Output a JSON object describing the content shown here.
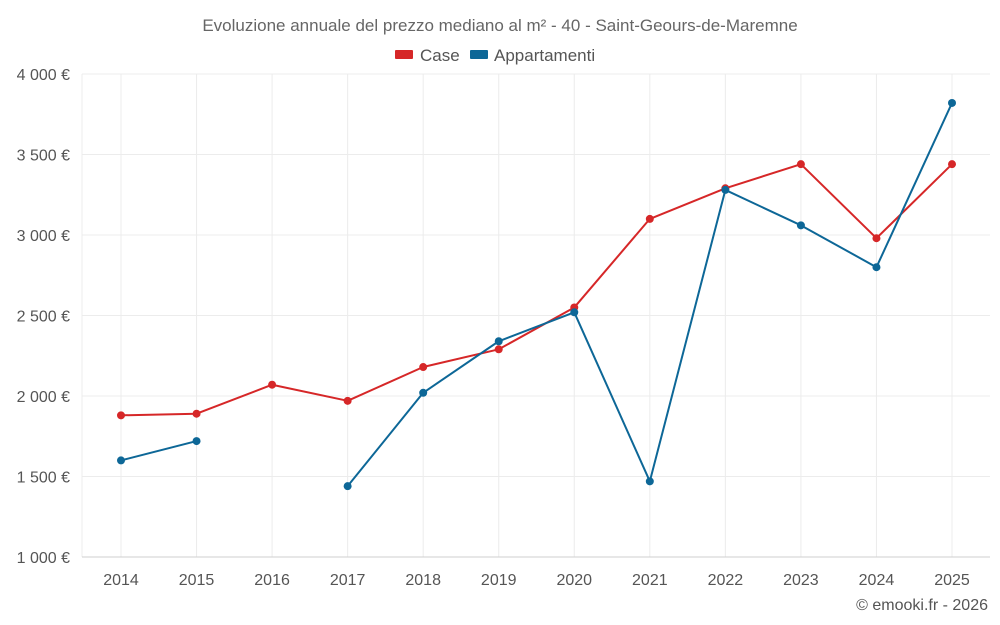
{
  "chart_data": {
    "type": "line",
    "title": "Evoluzione annuale del prezzo mediano al m² - 40 - Saint-Geours-de-Maremne",
    "categories": [
      "2014",
      "2015",
      "2016",
      "2017",
      "2018",
      "2019",
      "2020",
      "2021",
      "2022",
      "2023",
      "2024",
      "2025"
    ],
    "ylim": [
      1000,
      4000
    ],
    "yticks": [
      1000,
      1500,
      2000,
      2500,
      3000,
      3500,
      4000
    ],
    "ytick_labels": [
      "1 000 €",
      "1 500 €",
      "2 000 €",
      "2 500 €",
      "3 000 €",
      "3 500 €",
      "4 000 €"
    ],
    "grid": true,
    "legend_position": "top-center",
    "series": [
      {
        "name": "Case",
        "color": "#d62728",
        "values": [
          1880,
          1890,
          2070,
          1970,
          2180,
          2290,
          2550,
          3100,
          3290,
          3440,
          2980,
          3440
        ]
      },
      {
        "name": "Appartamenti",
        "color": "#0d6797",
        "values": [
          1600,
          1720,
          null,
          1440,
          2020,
          2340,
          2520,
          1470,
          3280,
          3060,
          2800,
          3820
        ]
      }
    ]
  },
  "credit": "© emooki.fr - 2026"
}
